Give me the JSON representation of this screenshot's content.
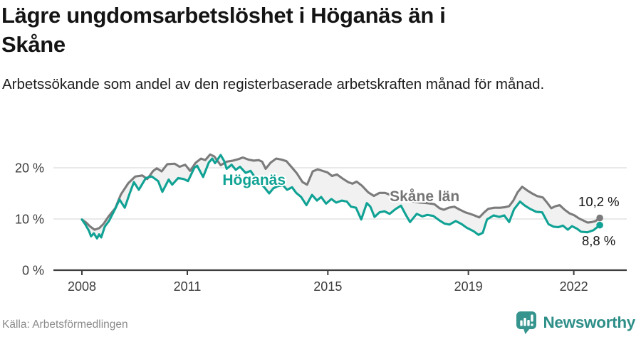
{
  "header": {
    "title": "Lägre ungdomsarbetslöshet i Höganäs än i Skåne",
    "subtitle": "Arbetssökande som andel av den registerbaserade arbetskraften månad för månad."
  },
  "chart_data": {
    "type": "line",
    "title": "Lägre ungdomsarbetslöshet i Höganäs än i Skåne",
    "unit": "%",
    "grid": "horizontal",
    "band_color": "#f1f1f1",
    "axis_color": "#3d3d3d",
    "gridline_color": "#dcdcdc",
    "x_range": [
      2007.19,
      2023.51
    ],
    "y_range": [
      0,
      25
    ],
    "x_ticks": [
      {
        "value": 2008,
        "label": "2008"
      },
      {
        "value": 2011,
        "label": "2011"
      },
      {
        "value": 2015,
        "label": "2015"
      },
      {
        "value": 2019,
        "label": "2019"
      },
      {
        "value": 2022,
        "label": "2022"
      }
    ],
    "y_ticks": [
      {
        "value": 0,
        "label": "0 %"
      },
      {
        "value": 10,
        "label": "10 %"
      },
      {
        "value": 20,
        "label": "20 %"
      }
    ],
    "series": [
      {
        "name": "Skåne län",
        "color": "#7b7b7b",
        "label": {
          "text": "Skåne län",
          "x": 2016.76,
          "y": 13.5,
          "anchor": "start",
          "color": "#757575"
        },
        "end_label": {
          "text": "10,2 %",
          "x": 2022.13,
          "y": 12.5
        },
        "end_value": 10.2,
        "points": [
          [
            2008.0,
            9.9
          ],
          [
            2008.12,
            9.3
          ],
          [
            2008.24,
            8.5
          ],
          [
            2008.36,
            7.9
          ],
          [
            2008.49,
            8.2
          ],
          [
            2008.61,
            9.0
          ],
          [
            2008.77,
            10.6
          ],
          [
            2008.95,
            12.1
          ],
          [
            2009.11,
            14.8
          ],
          [
            2009.32,
            17.0
          ],
          [
            2009.52,
            18.3
          ],
          [
            2009.72,
            18.5
          ],
          [
            2009.86,
            17.8
          ],
          [
            2010.03,
            19.4
          ],
          [
            2010.13,
            19.9
          ],
          [
            2010.27,
            19.3
          ],
          [
            2010.43,
            20.7
          ],
          [
            2010.64,
            20.8
          ],
          [
            2010.78,
            20.2
          ],
          [
            2010.94,
            20.6
          ],
          [
            2011.08,
            19.4
          ],
          [
            2011.24,
            21.0
          ],
          [
            2011.39,
            21.8
          ],
          [
            2011.51,
            21.5
          ],
          [
            2011.65,
            22.6
          ],
          [
            2011.77,
            22.2
          ],
          [
            2011.95,
            20.5
          ],
          [
            2012.12,
            21.2
          ],
          [
            2012.3,
            21.4
          ],
          [
            2012.46,
            21.7
          ],
          [
            2012.58,
            22.0
          ],
          [
            2012.74,
            21.6
          ],
          [
            2012.89,
            21.4
          ],
          [
            2013.03,
            21.5
          ],
          [
            2013.13,
            21.2
          ],
          [
            2013.23,
            19.8
          ],
          [
            2013.37,
            21.0
          ],
          [
            2013.53,
            21.8
          ],
          [
            2013.68,
            21.6
          ],
          [
            2013.82,
            21.3
          ],
          [
            2013.96,
            20.2
          ],
          [
            2014.12,
            18.9
          ],
          [
            2014.28,
            17.2
          ],
          [
            2014.41,
            16.7
          ],
          [
            2014.57,
            19.3
          ],
          [
            2014.71,
            19.7
          ],
          [
            2014.85,
            19.4
          ],
          [
            2014.99,
            19.1
          ],
          [
            2015.12,
            18.4
          ],
          [
            2015.26,
            18.7
          ],
          [
            2015.42,
            17.9
          ],
          [
            2015.58,
            17.2
          ],
          [
            2015.7,
            16.9
          ],
          [
            2015.82,
            17.3
          ],
          [
            2015.97,
            16.5
          ],
          [
            2016.15,
            15.2
          ],
          [
            2016.31,
            14.5
          ],
          [
            2016.47,
            15.1
          ],
          [
            2016.63,
            15.1
          ],
          [
            2016.82,
            14.6
          ],
          [
            2017.02,
            14.2
          ],
          [
            2017.22,
            13.7
          ],
          [
            2017.43,
            13.4
          ],
          [
            2017.63,
            13.2
          ],
          [
            2017.83,
            13.1
          ],
          [
            2018.03,
            12.9
          ],
          [
            2018.18,
            12.1
          ],
          [
            2018.3,
            11.8
          ],
          [
            2018.44,
            12.2
          ],
          [
            2018.6,
            12.4
          ],
          [
            2018.76,
            11.8
          ],
          [
            2018.91,
            11.3
          ],
          [
            2019.05,
            11.0
          ],
          [
            2019.17,
            10.7
          ],
          [
            2019.31,
            10.3
          ],
          [
            2019.45,
            11.3
          ],
          [
            2019.57,
            12.0
          ],
          [
            2019.74,
            12.2
          ],
          [
            2019.9,
            12.2
          ],
          [
            2020.04,
            12.3
          ],
          [
            2020.16,
            12.5
          ],
          [
            2020.28,
            13.6
          ],
          [
            2020.4,
            15.2
          ],
          [
            2020.53,
            16.3
          ],
          [
            2020.67,
            15.6
          ],
          [
            2020.81,
            15.0
          ],
          [
            2020.95,
            14.5
          ],
          [
            2021.12,
            14.2
          ],
          [
            2021.24,
            13.2
          ],
          [
            2021.36,
            12.1
          ],
          [
            2021.48,
            12.5
          ],
          [
            2021.6,
            12.7
          ],
          [
            2021.74,
            11.8
          ],
          [
            2021.88,
            11.1
          ],
          [
            2022.02,
            10.7
          ],
          [
            2022.15,
            10.1
          ],
          [
            2022.27,
            9.7
          ],
          [
            2022.39,
            9.3
          ],
          [
            2022.52,
            9.4
          ],
          [
            2022.62,
            9.6
          ],
          [
            2022.74,
            10.2
          ]
        ]
      },
      {
        "name": "Höganäs",
        "color": "#10a294",
        "label": {
          "text": "Höganäs",
          "x": 2012.9,
          "y": 16.7,
          "anchor": "middle",
          "color": "#10a294"
        },
        "end_label": {
          "text": "8,8 %",
          "x": 2022.23,
          "y": 4.86
        },
        "end_value": 8.8,
        "points": [
          [
            2008.0,
            9.9
          ],
          [
            2008.1,
            8.9
          ],
          [
            2008.2,
            7.7
          ],
          [
            2008.26,
            6.6
          ],
          [
            2008.34,
            7.2
          ],
          [
            2008.43,
            6.2
          ],
          [
            2008.49,
            7.0
          ],
          [
            2008.55,
            6.4
          ],
          [
            2008.65,
            8.5
          ],
          [
            2008.77,
            9.6
          ],
          [
            2008.95,
            12.0
          ],
          [
            2009.07,
            13.8
          ],
          [
            2009.22,
            12.2
          ],
          [
            2009.36,
            15.0
          ],
          [
            2009.48,
            17.2
          ],
          [
            2009.62,
            15.7
          ],
          [
            2009.82,
            18.0
          ],
          [
            2009.99,
            18.3
          ],
          [
            2010.17,
            17.4
          ],
          [
            2010.29,
            15.3
          ],
          [
            2010.47,
            17.7
          ],
          [
            2010.57,
            16.7
          ],
          [
            2010.74,
            18.0
          ],
          [
            2010.9,
            17.8
          ],
          [
            2011.02,
            17.4
          ],
          [
            2011.2,
            20.0
          ],
          [
            2011.28,
            20.4
          ],
          [
            2011.45,
            18.2
          ],
          [
            2011.61,
            21.0
          ],
          [
            2011.71,
            21.8
          ],
          [
            2011.79,
            20.9
          ],
          [
            2011.95,
            22.5
          ],
          [
            2012.05,
            21.3
          ],
          [
            2012.12,
            19.8
          ],
          [
            2012.26,
            20.6
          ],
          [
            2012.38,
            19.6
          ],
          [
            2012.5,
            20.2
          ],
          [
            2012.66,
            19.0
          ],
          [
            2012.8,
            19.4
          ],
          [
            2012.93,
            18.1
          ],
          [
            2013.07,
            17.0
          ],
          [
            2013.19,
            16.2
          ],
          [
            2013.33,
            15.0
          ],
          [
            2013.45,
            16.0
          ],
          [
            2013.57,
            16.4
          ],
          [
            2013.72,
            16.6
          ],
          [
            2013.84,
            15.7
          ],
          [
            2013.98,
            16.2
          ],
          [
            2014.1,
            15.1
          ],
          [
            2014.24,
            14.3
          ],
          [
            2014.39,
            12.7
          ],
          [
            2014.55,
            14.7
          ],
          [
            2014.69,
            13.6
          ],
          [
            2014.81,
            14.3
          ],
          [
            2014.95,
            13.0
          ],
          [
            2015.1,
            13.9
          ],
          [
            2015.24,
            13.2
          ],
          [
            2015.4,
            13.6
          ],
          [
            2015.54,
            13.4
          ],
          [
            2015.66,
            12.4
          ],
          [
            2015.8,
            12.2
          ],
          [
            2015.95,
            9.9
          ],
          [
            2016.11,
            13.1
          ],
          [
            2016.21,
            12.4
          ],
          [
            2016.33,
            10.4
          ],
          [
            2016.47,
            11.3
          ],
          [
            2016.61,
            11.5
          ],
          [
            2016.76,
            11.0
          ],
          [
            2016.92,
            11.9
          ],
          [
            2017.08,
            12.6
          ],
          [
            2017.22,
            10.8
          ],
          [
            2017.34,
            9.4
          ],
          [
            2017.53,
            11.0
          ],
          [
            2017.69,
            10.5
          ],
          [
            2017.83,
            10.8
          ],
          [
            2018.0,
            10.6
          ],
          [
            2018.18,
            9.7
          ],
          [
            2018.32,
            9.1
          ],
          [
            2018.46,
            8.9
          ],
          [
            2018.64,
            9.6
          ],
          [
            2018.81,
            9.0
          ],
          [
            2018.95,
            8.3
          ],
          [
            2019.15,
            7.6
          ],
          [
            2019.29,
            6.9
          ],
          [
            2019.41,
            7.3
          ],
          [
            2019.53,
            9.9
          ],
          [
            2019.72,
            10.7
          ],
          [
            2019.88,
            10.4
          ],
          [
            2020.02,
            10.7
          ],
          [
            2020.16,
            9.4
          ],
          [
            2020.3,
            11.9
          ],
          [
            2020.47,
            13.4
          ],
          [
            2020.61,
            12.6
          ],
          [
            2020.75,
            12.0
          ],
          [
            2020.93,
            11.4
          ],
          [
            2021.1,
            11.3
          ],
          [
            2021.28,
            9.0
          ],
          [
            2021.42,
            8.5
          ],
          [
            2021.56,
            8.4
          ],
          [
            2021.69,
            8.7
          ],
          [
            2021.83,
            7.9
          ],
          [
            2021.95,
            8.6
          ],
          [
            2022.09,
            8.1
          ],
          [
            2022.21,
            7.5
          ],
          [
            2022.39,
            7.4
          ],
          [
            2022.56,
            7.8
          ],
          [
            2022.74,
            8.8
          ]
        ]
      }
    ]
  },
  "footer": {
    "source": "Källa: Arbetsförmedlingen",
    "brand": "Newsworthy",
    "brand_color": "#2e8f88",
    "logo_color": "#35948e"
  }
}
